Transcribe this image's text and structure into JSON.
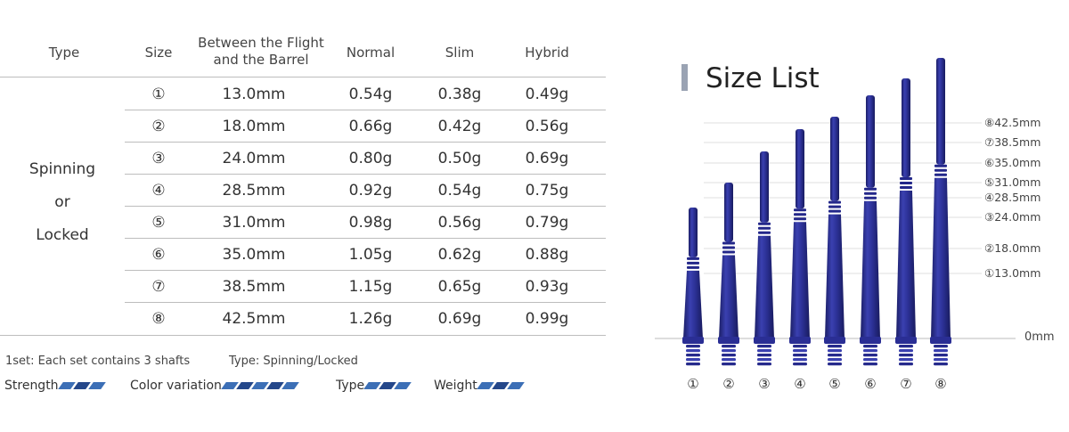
{
  "table": {
    "headers": {
      "type": "Type",
      "size": "Size",
      "between": "Between the Flight and the Barrel",
      "normal": "Normal",
      "slim": "Slim",
      "hybrid": "Hybrid"
    },
    "type_label": [
      "Spinning",
      "or",
      "Locked"
    ],
    "rows": [
      {
        "size": "①",
        "length": "13.0mm",
        "normal": "0.54g",
        "slim": "0.38g",
        "hybrid": "0.49g"
      },
      {
        "size": "②",
        "length": "18.0mm",
        "normal": "0.66g",
        "slim": "0.42g",
        "hybrid": "0.56g"
      },
      {
        "size": "③",
        "length": "24.0mm",
        "normal": "0.80g",
        "slim": "0.50g",
        "hybrid": "0.69g"
      },
      {
        "size": "④",
        "length": "28.5mm",
        "normal": "0.92g",
        "slim": "0.54g",
        "hybrid": "0.75g"
      },
      {
        "size": "⑤",
        "length": "31.0mm",
        "normal": "0.98g",
        "slim": "0.56g",
        "hybrid": "0.79g"
      },
      {
        "size": "⑥",
        "length": "35.0mm",
        "normal": "1.05g",
        "slim": "0.62g",
        "hybrid": "0.88g"
      },
      {
        "size": "⑦",
        "length": "38.5mm",
        "normal": "1.15g",
        "slim": "0.65g",
        "hybrid": "0.93g"
      },
      {
        "size": "⑧",
        "length": "42.5mm",
        "normal": "1.26g",
        "slim": "0.69g",
        "hybrid": "0.99g"
      }
    ]
  },
  "notes": {
    "set": "1set: Each set contains 3 shafts",
    "type": "Type: Spinning/Locked"
  },
  "meters": [
    {
      "label": "Strength",
      "total": 3,
      "filled": 3
    },
    {
      "label": "Color variation",
      "total": 5,
      "filled": 5
    },
    {
      "label": "Type",
      "total": 3,
      "filled": 3
    },
    {
      "label": "Weight",
      "total": 3,
      "filled": 3
    }
  ],
  "size_list": {
    "title": "Size List",
    "zero_label": "0mm",
    "length_labels": [
      "⑧42.5mm",
      "⑦38.5mm",
      "⑥35.0mm",
      "⑤31.0mm",
      "④28.5mm",
      "③24.0mm",
      "②18.0mm",
      "①13.0mm"
    ],
    "shaft_numbers": [
      "①",
      "②",
      "③",
      "④",
      "⑤",
      "⑥",
      "⑦",
      "⑧"
    ]
  },
  "colors": {
    "shaft_blue": "#2b2f8f",
    "shaft_dark": "#1c1f6b",
    "meter_blue": "#3c6fb6",
    "meter_dark": "#24478a"
  }
}
